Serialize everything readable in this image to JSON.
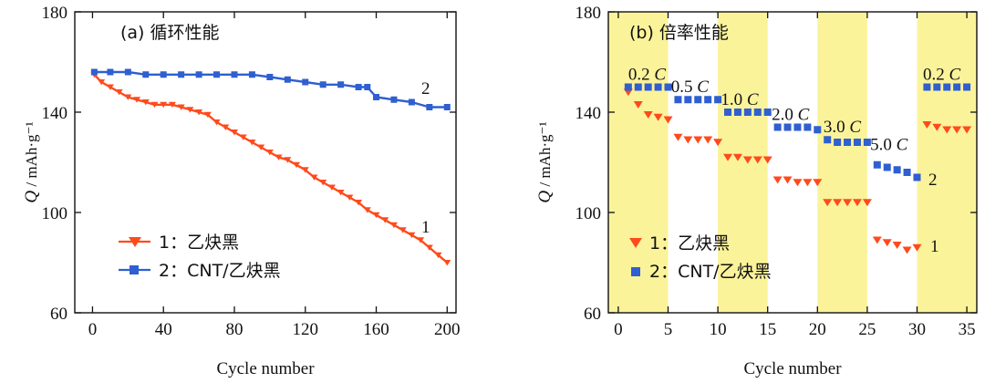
{
  "colors": {
    "series1": "#ff4a1c",
    "series2": "#2f5fd0",
    "band": "#fbf39a"
  },
  "chart_data": [
    {
      "type": "line",
      "panel_label": "(a) 循环性能",
      "xlabel": "Cycle number",
      "ylabel_symbol": "Q",
      "ylabel_unit": " / mAh·g⁻¹",
      "xlim": [
        -10,
        205
      ],
      "ylim": [
        60,
        180
      ],
      "xticks": [
        0,
        40,
        80,
        120,
        160,
        200
      ],
      "yticks": [
        60,
        100,
        140,
        180
      ],
      "legend_position": "bottom-left",
      "series": [
        {
          "name": "1：乙炔黑",
          "curve_label": "1",
          "marker": "triangle-down",
          "x": [
            1,
            5,
            10,
            15,
            20,
            25,
            30,
            35,
            40,
            45,
            50,
            55,
            60,
            65,
            70,
            75,
            80,
            85,
            90,
            95,
            100,
            105,
            110,
            115,
            120,
            125,
            130,
            135,
            140,
            145,
            150,
            155,
            160,
            165,
            170,
            175,
            180,
            185,
            190,
            195,
            200
          ],
          "y": [
            155,
            152,
            150,
            148,
            146,
            145,
            144,
            143,
            143,
            143,
            142,
            141,
            140,
            139,
            136,
            134,
            132,
            130,
            128,
            126,
            124,
            122,
            121,
            119,
            117,
            114,
            112,
            110,
            108,
            106,
            104,
            101,
            99,
            97,
            95,
            93,
            91,
            89,
            86,
            83,
            80
          ]
        },
        {
          "name": "2：CNT/乙炔黑",
          "curve_label": "2",
          "marker": "square",
          "x": [
            1,
            10,
            20,
            30,
            40,
            50,
            60,
            70,
            80,
            90,
            100,
            110,
            120,
            130,
            140,
            150,
            155,
            160,
            170,
            180,
            190,
            200
          ],
          "y": [
            156,
            156,
            156,
            155,
            155,
            155,
            155,
            155,
            155,
            155,
            154,
            153,
            152,
            151,
            151,
            150,
            150,
            146,
            145,
            144,
            142,
            142
          ]
        }
      ]
    },
    {
      "type": "scatter",
      "panel_label": "(b) 倍率性能",
      "xlabel": "Cycle number",
      "ylabel_symbol": "Q",
      "ylabel_unit": " / mAh·g⁻¹",
      "xlim": [
        -1,
        36
      ],
      "ylim": [
        60,
        180
      ],
      "xticks": [
        0,
        5,
        10,
        15,
        20,
        25,
        30,
        35
      ],
      "yticks": [
        60,
        100,
        140,
        180
      ],
      "legend_position": "bottom-left",
      "shaded_x_ranges": [
        [
          -1,
          5
        ],
        [
          10,
          15
        ],
        [
          20,
          25
        ],
        [
          30,
          36
        ]
      ],
      "rate_labels": [
        {
          "num": "0.2",
          "unit": "C",
          "x": 1,
          "y": 153
        },
        {
          "num": "0.5",
          "unit": "C",
          "x": 5.3,
          "y": 148
        },
        {
          "num": "1.0",
          "unit": "C",
          "x": 10.3,
          "y": 143
        },
        {
          "num": "2.0",
          "unit": "C",
          "x": 15.4,
          "y": 137
        },
        {
          "num": "3.0",
          "unit": "C",
          "x": 20.6,
          "y": 132
        },
        {
          "num": "5.0",
          "unit": "C",
          "x": 25.3,
          "y": 125
        },
        {
          "num": "0.2",
          "unit": "C",
          "x": 30.6,
          "y": 153
        }
      ],
      "series": [
        {
          "name": "1：乙炔黑",
          "curve_label": "1",
          "marker": "triangle-down",
          "x": [
            1,
            2,
            3,
            4,
            5,
            6,
            7,
            8,
            9,
            10,
            11,
            12,
            13,
            14,
            15,
            16,
            17,
            18,
            19,
            20,
            21,
            22,
            23,
            24,
            25,
            26,
            27,
            28,
            29,
            30,
            31,
            32,
            33,
            34,
            35
          ],
          "y": [
            148,
            143,
            139,
            138,
            137,
            130,
            129,
            129,
            129,
            128,
            122,
            122,
            121,
            121,
            121,
            113,
            113,
            112,
            112,
            112,
            104,
            104,
            104,
            104,
            104,
            89,
            88,
            87,
            85,
            86,
            135,
            134,
            133,
            133,
            133
          ]
        },
        {
          "name": "2：CNT/乙炔黑",
          "curve_label": "2",
          "marker": "square",
          "x": [
            1,
            2,
            3,
            4,
            5,
            6,
            7,
            8,
            9,
            10,
            11,
            12,
            13,
            14,
            15,
            16,
            17,
            18,
            19,
            20,
            21,
            22,
            23,
            24,
            25,
            26,
            27,
            28,
            29,
            30,
            31,
            32,
            33,
            34,
            35
          ],
          "y": [
            150,
            150,
            150,
            150,
            150,
            145,
            145,
            145,
            145,
            145,
            140,
            140,
            140,
            140,
            140,
            134,
            134,
            134,
            134,
            133,
            129,
            128,
            128,
            128,
            128,
            119,
            118,
            117,
            116,
            114,
            150,
            150,
            150,
            150,
            150
          ]
        }
      ]
    }
  ]
}
